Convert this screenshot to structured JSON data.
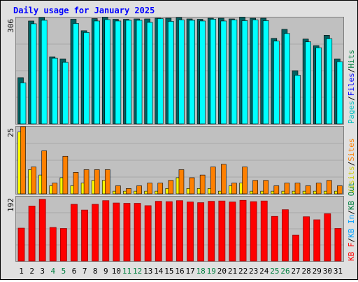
{
  "chart_data": {
    "type": "bar",
    "title": "Daily usage for January 2025",
    "days": [
      "1",
      "2",
      "3",
      "4",
      "5",
      "6",
      "7",
      "8",
      "9",
      "10",
      "11",
      "12",
      "13",
      "14",
      "15",
      "16",
      "17",
      "18",
      "19",
      "20",
      "21",
      "22",
      "23",
      "24",
      "25",
      "26",
      "27",
      "28",
      "29",
      "30",
      "31"
    ],
    "weekend_days": [
      "4",
      "5",
      "11",
      "12",
      "18",
      "19",
      "25",
      "26"
    ],
    "colors": {
      "title": "#0000ff",
      "plot_bg": "#c0c0c0",
      "grid": "#a8a8a8",
      "pages": "#00c0c0",
      "hits": "#006060",
      "files": "#00ffff",
      "visits": "#ffff00",
      "sites": "#ff8000",
      "kbin": "#00a0ff",
      "kbout": "#008040",
      "kbf": "#ff0000",
      "kbf_dark": "#990000",
      "weekday_label": "#000000",
      "weekend_label": "#008040"
    },
    "panels": [
      {
        "id": "hits-files-pages",
        "ymax_label": "306",
        "ymax": 306,
        "legend": [
          {
            "text": "Pages",
            "color": "#00c0c0"
          },
          {
            "text": "/",
            "color": "#000000"
          },
          {
            "text": "Files",
            "color": "#0000ff"
          },
          {
            "text": "/",
            "color": "#000000"
          },
          {
            "text": "Hits",
            "color": "#008040"
          }
        ],
        "series": [
          {
            "name": "Hits",
            "values": [
              133,
              296,
              306,
              193,
              187,
              301,
              268,
              303,
              307,
              301,
              301,
              302,
              302,
              304,
              304,
              306,
              302,
              301,
              304,
              304,
              302,
              307,
              304,
              304,
              246,
              272,
              153,
              244,
              225,
              255,
              187
            ]
          },
          {
            "name": "Files",
            "values": [
              118,
              288,
              298,
              189,
              177,
              289,
              263,
              296,
              300,
              296,
              298,
              298,
              292,
              303,
              295,
              299,
              298,
              296,
              301,
              296,
              299,
              297,
              299,
              297,
              238,
              260,
              140,
              236,
              219,
              245,
              179
            ]
          }
        ]
      },
      {
        "id": "visits-sites",
        "ymax_label": "25",
        "ymax": 25,
        "legend": [
          {
            "text": "Visits",
            "color": "#cccc00"
          },
          {
            "text": "/",
            "color": "#000000"
          },
          {
            "text": "Sites",
            "color": "#ff8000"
          }
        ],
        "series": [
          {
            "name": "Visits",
            "values": [
              23,
              9,
              7,
              3,
              6,
              3,
              4,
              5,
              5,
              1,
              1,
              1,
              1,
              1,
              2,
              6,
              2,
              2,
              2,
              1,
              3,
              4,
              1,
              1,
              1,
              1,
              1,
              1,
              1,
              1,
              1
            ]
          },
          {
            "name": "Sites",
            "values": [
              25,
              10,
              16,
              4,
              14,
              8,
              9,
              9,
              9,
              3,
              2,
              3,
              4,
              4,
              5,
              9,
              6,
              7,
              10,
              11,
              4,
              10,
              5,
              5,
              3,
              4,
              4,
              3,
              4,
              5,
              3
            ]
          }
        ]
      },
      {
        "id": "kbytes",
        "ymax_label": "192",
        "ymax": 192,
        "legend": [
          {
            "text": "KB F",
            "color": "#ff0000"
          },
          {
            "text": "/",
            "color": "#000000"
          },
          {
            "text": "KB In",
            "color": "#00a0ff"
          },
          {
            "text": "/",
            "color": "#000000"
          },
          {
            "text": "KB Out",
            "color": "#008040"
          }
        ],
        "series": [
          {
            "name": "KB F",
            "values": [
              98,
              164,
              184,
              100,
              97,
              169,
              152,
              169,
              180,
              173,
              172,
              172,
              165,
              178,
              177,
              180,
              176,
              174,
              178,
              179,
              176,
              181,
              177,
              179,
              133,
              153,
              77,
              132,
              123,
              141,
              97
            ]
          }
        ]
      }
    ]
  }
}
